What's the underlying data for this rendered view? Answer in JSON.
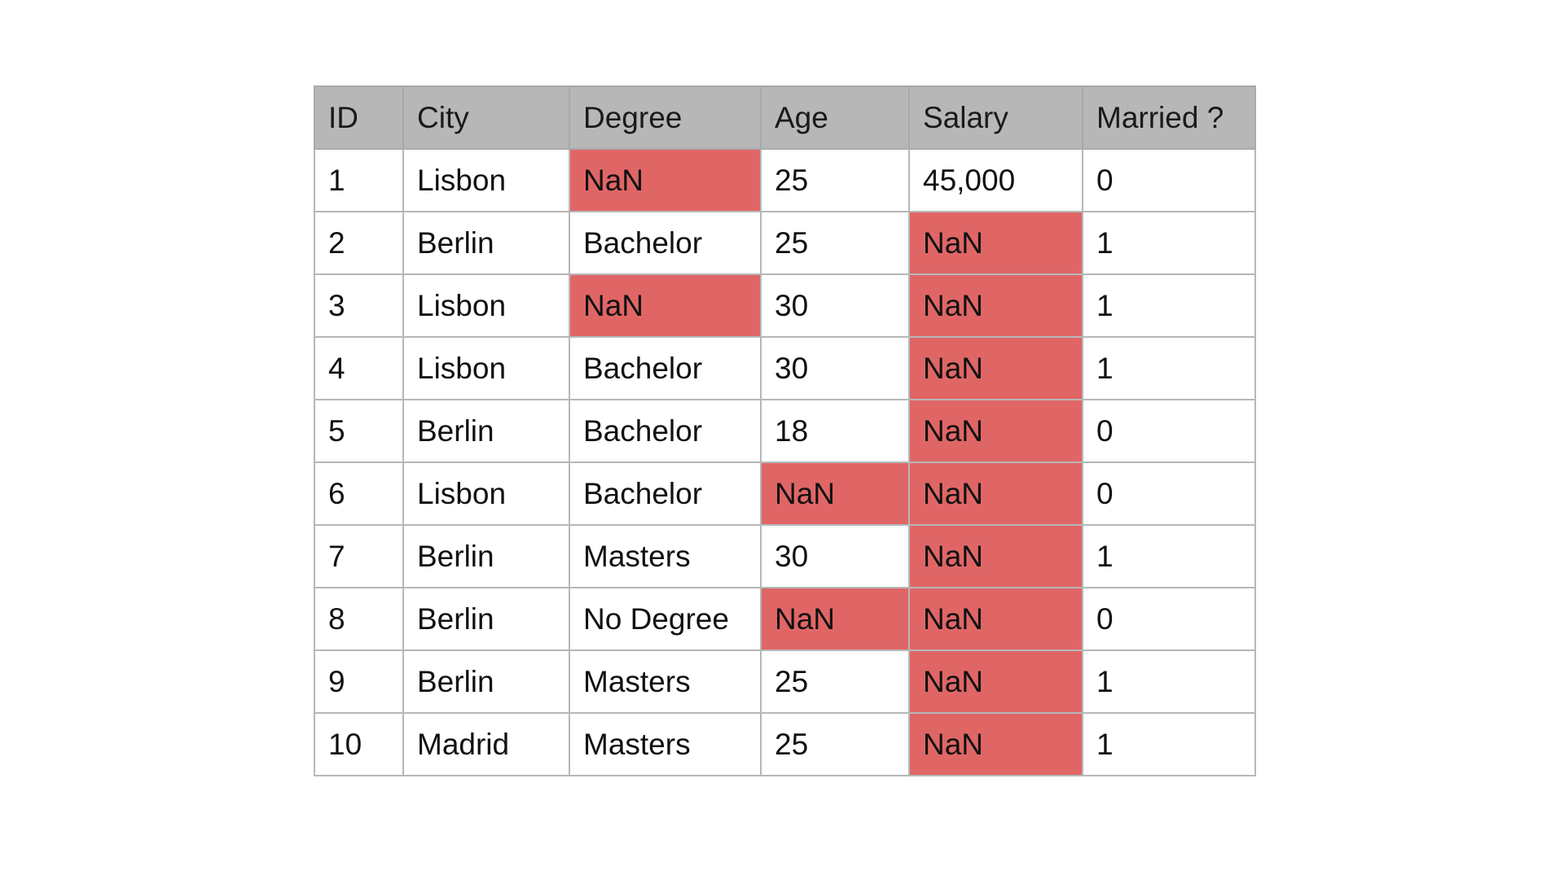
{
  "table": {
    "columns": [
      "ID",
      "City",
      "Degree",
      "Age",
      "Salary",
      "Married ?"
    ],
    "rows": [
      [
        "1",
        "Lisbon",
        "NaN",
        "25",
        "45,000",
        "0"
      ],
      [
        "2",
        "Berlin",
        "Bachelor",
        "25",
        "NaN",
        "1"
      ],
      [
        "3",
        "Lisbon",
        "NaN",
        "30",
        "NaN",
        "1"
      ],
      [
        "4",
        "Lisbon",
        "Bachelor",
        "30",
        "NaN",
        "1"
      ],
      [
        "5",
        "Berlin",
        "Bachelor",
        "18",
        "NaN",
        "0"
      ],
      [
        "6",
        "Lisbon",
        "Bachelor",
        "NaN",
        "NaN",
        "0"
      ],
      [
        "7",
        "Berlin",
        "Masters",
        "30",
        "NaN",
        "1"
      ],
      [
        "8",
        "Berlin",
        "No Degree",
        "NaN",
        "NaN",
        "0"
      ],
      [
        "9",
        "Berlin",
        "Masters",
        "25",
        "NaN",
        "1"
      ],
      [
        "10",
        "Madrid",
        "Masters",
        "25",
        "NaN",
        "1"
      ]
    ],
    "missing_marker": "NaN",
    "colors": {
      "header_bg": "#b7b7b7",
      "missing_bg": "#e06666",
      "grid": "#b7b7b7"
    }
  }
}
